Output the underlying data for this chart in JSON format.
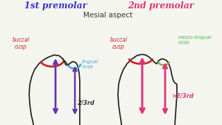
{
  "title_1st": "1st premolar",
  "title_2nd": "2nd premolar",
  "subtitle": "Mesial aspect",
  "title_1st_color": "#3333cc",
  "title_2nd_color": "#dd3377",
  "subtitle_color": "#333333",
  "label_buccal_color": "#cc2222",
  "label_lingual_color": "#44aacc",
  "label_mesiolingual_color": "#44bb44",
  "arrow_1st_color": "#6633aa",
  "arrow_2nd_color": "#dd3377",
  "bg_color": "#f5f5f0",
  "tooth_color": "#222222",
  "red_arc_color": "#cc2222",
  "teal_arc_color": "#44aacc",
  "green_arc_color": "#88aa44"
}
